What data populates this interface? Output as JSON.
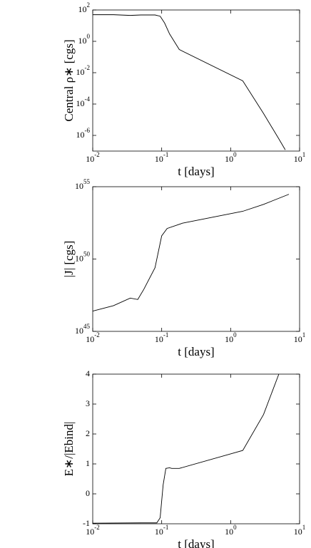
{
  "chart_data": [
    {
      "type": "line",
      "xlabel": "t [days]",
      "ylabel": "Central ρ∗ [cgs]",
      "xscale": "log",
      "yscale": "log",
      "color": "#000000",
      "xlim": [
        0.01,
        10
      ],
      "ylim": [
        1e-07,
        100
      ],
      "xticks": [
        {
          "value": 0.01,
          "label": "10^-2"
        },
        {
          "value": 0.1,
          "label": "10^-1"
        },
        {
          "value": 1,
          "label": "10^0"
        },
        {
          "value": 10,
          "label": "10^1"
        }
      ],
      "yticks": [
        {
          "value": 1e-06,
          "label": "10^-6"
        },
        {
          "value": 0.0001,
          "label": "10^-4"
        },
        {
          "value": 0.01,
          "label": "10^-2"
        },
        {
          "value": 1,
          "label": "10^0"
        },
        {
          "value": 100,
          "label": "10^2"
        }
      ],
      "x": [
        0.01,
        0.02,
        0.035,
        0.05,
        0.08,
        0.095,
        0.11,
        0.13,
        0.18,
        1.5,
        3,
        5,
        6.2
      ],
      "values": [
        50,
        50,
        45,
        48,
        48,
        40,
        15,
        3,
        0.3,
        0.003,
        2.5e-05,
        6e-07,
        1.2e-07
      ]
    },
    {
      "type": "line",
      "xlabel": "t [days]",
      "ylabel": "|J| [cgs]",
      "xscale": "log",
      "yscale": "log",
      "color": "#000000",
      "xlim": [
        0.01,
        10
      ],
      "ylim": [
        1e+45,
        1e+55
      ],
      "xticks": [
        {
          "value": 0.01,
          "label": "10^-2"
        },
        {
          "value": 0.1,
          "label": "10^-1"
        },
        {
          "value": 1,
          "label": "10^0"
        },
        {
          "value": 10,
          "label": "10^1"
        }
      ],
      "yticks": [
        {
          "value": 1e+45,
          "label": "10^45"
        },
        {
          "value": 1e+50,
          "label": "10^50"
        },
        {
          "value": 1e+55,
          "label": "10^55"
        }
      ],
      "x": [
        0.01,
        0.02,
        0.035,
        0.045,
        0.055,
        0.08,
        0.1,
        0.12,
        0.2,
        1.5,
        3,
        7
      ],
      "values": [
        2.5e+46,
        6e+46,
        2e+47,
        1.6e+47,
        8e+47,
        2.5e+49,
        4e+51,
        1.3e+52,
        3e+52,
        2e+53,
        6e+53,
        3e+54
      ]
    },
    {
      "type": "line",
      "xlabel": "t [days]",
      "ylabel": "E∗/|Ebind|",
      "xscale": "log",
      "yscale": "linear",
      "color": "#000000",
      "xlim": [
        0.01,
        10
      ],
      "ylim": [
        -1,
        4
      ],
      "xticks": [
        {
          "value": 0.01,
          "label": "10^-2"
        },
        {
          "value": 0.1,
          "label": "10^-1"
        },
        {
          "value": 1,
          "label": "10^0"
        },
        {
          "value": 10,
          "label": "10^1"
        }
      ],
      "yticks": [
        -1,
        0,
        1,
        2,
        3,
        4
      ],
      "x": [
        0.01,
        0.05,
        0.085,
        0.095,
        0.105,
        0.115,
        0.13,
        0.14,
        0.18,
        1.5,
        3,
        5
      ],
      "values": [
        -0.98,
        -0.97,
        -0.97,
        -0.8,
        0.3,
        0.85,
        0.87,
        0.85,
        0.85,
        1.45,
        2.65,
        4
      ]
    }
  ]
}
